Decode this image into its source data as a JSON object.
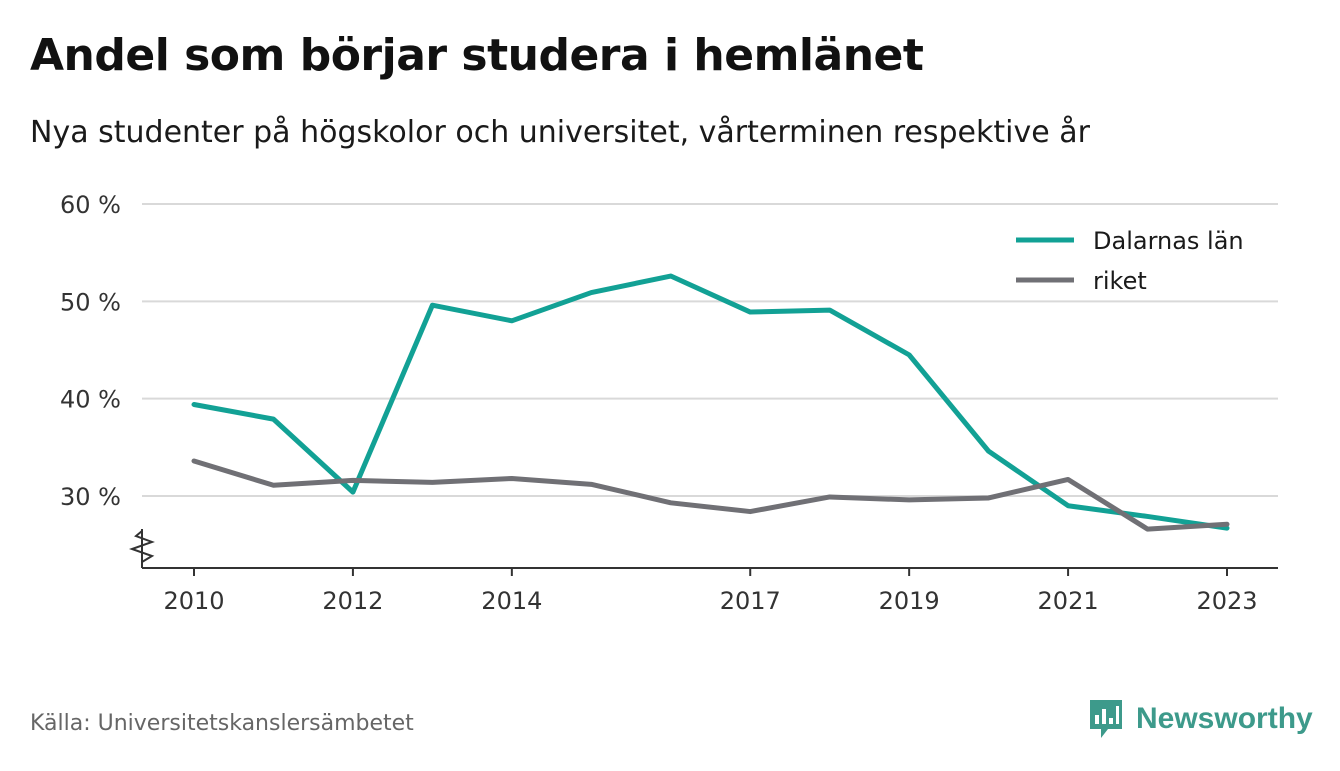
{
  "header": {
    "title": "Andel som börjar studera i hemlänet",
    "subtitle": "Nya studenter på högskolor och universitet, vårterminen respektive år"
  },
  "footer": {
    "source": "Källa: Universitetskanslersämbetet",
    "brand": "Newsworthy",
    "brand_icon": "bar-chart-speech-icon"
  },
  "colors": {
    "series_1": "#12a195",
    "series_2": "#707075",
    "grid": "#d9d9d9",
    "axis": "#333333",
    "brand": "#3d9a8b"
  },
  "chart_data": {
    "type": "line",
    "x": [
      2010,
      2011,
      2012,
      2013,
      2014,
      2015,
      2016,
      2017,
      2018,
      2019,
      2020,
      2021,
      2022,
      2023
    ],
    "x_ticks": [
      "2010",
      "2012",
      "2014",
      "2017",
      "2019",
      "2021",
      "2023"
    ],
    "y_ticks": [
      "30 %",
      "40 %",
      "50 %",
      "60 %"
    ],
    "y_tick_values": [
      30,
      40,
      50,
      60
    ],
    "ylim": [
      22.5,
      60
    ],
    "y_axis_break": true,
    "grid": true,
    "legend_position": "top-right",
    "series": [
      {
        "name": "Dalarnas län",
        "values": [
          39.4,
          37.9,
          30.4,
          49.6,
          48.0,
          50.9,
          52.6,
          48.9,
          49.1,
          44.5,
          34.6,
          29.0,
          27.9,
          26.7
        ]
      },
      {
        "name": "riket",
        "values": [
          33.6,
          31.1,
          31.6,
          31.4,
          31.8,
          31.2,
          29.3,
          28.4,
          29.9,
          29.6,
          29.8,
          31.7,
          26.6,
          27.1
        ]
      }
    ]
  }
}
